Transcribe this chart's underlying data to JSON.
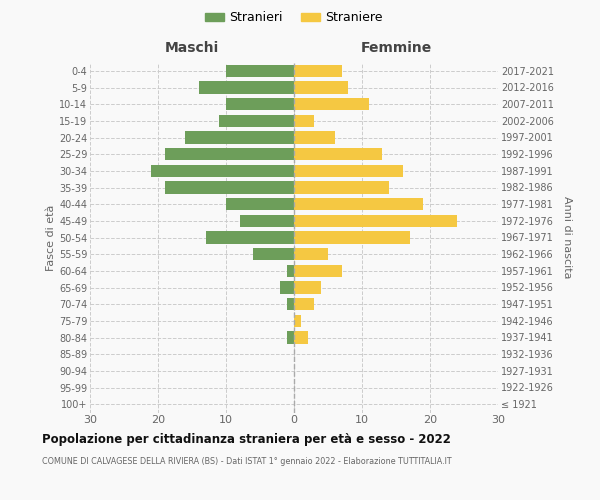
{
  "age_groups": [
    "100+",
    "95-99",
    "90-94",
    "85-89",
    "80-84",
    "75-79",
    "70-74",
    "65-69",
    "60-64",
    "55-59",
    "50-54",
    "45-49",
    "40-44",
    "35-39",
    "30-34",
    "25-29",
    "20-24",
    "15-19",
    "10-14",
    "5-9",
    "0-4"
  ],
  "birth_years": [
    "≤ 1921",
    "1922-1926",
    "1927-1931",
    "1932-1936",
    "1937-1941",
    "1942-1946",
    "1947-1951",
    "1952-1956",
    "1957-1961",
    "1962-1966",
    "1967-1971",
    "1972-1976",
    "1977-1981",
    "1982-1986",
    "1987-1991",
    "1992-1996",
    "1997-2001",
    "2002-2006",
    "2007-2011",
    "2012-2016",
    "2017-2021"
  ],
  "maschi": [
    0,
    0,
    0,
    0,
    1,
    0,
    1,
    2,
    1,
    6,
    13,
    8,
    10,
    19,
    21,
    19,
    16,
    11,
    10,
    14,
    10
  ],
  "femmine": [
    0,
    0,
    0,
    0,
    2,
    1,
    3,
    4,
    7,
    5,
    17,
    24,
    19,
    14,
    16,
    13,
    6,
    3,
    11,
    8,
    7
  ],
  "color_maschi": "#6d9e5a",
  "color_femmine": "#f5c842",
  "title": "Popolazione per cittadinanza straniera per età e sesso - 2022",
  "subtitle": "COMUNE DI CALVAGESE DELLA RIVIERA (BS) - Dati ISTAT 1° gennaio 2022 - Elaborazione TUTTITALIA.IT",
  "ylabel_left": "Fasce di età",
  "ylabel_right": "Anni di nascita",
  "xlabel_maschi": "Maschi",
  "xlabel_femmine": "Femmine",
  "legend_stranieri": "Stranieri",
  "legend_straniere": "Straniere",
  "xlim": 30,
  "background_color": "#f9f9f9",
  "grid_color": "#cccccc"
}
